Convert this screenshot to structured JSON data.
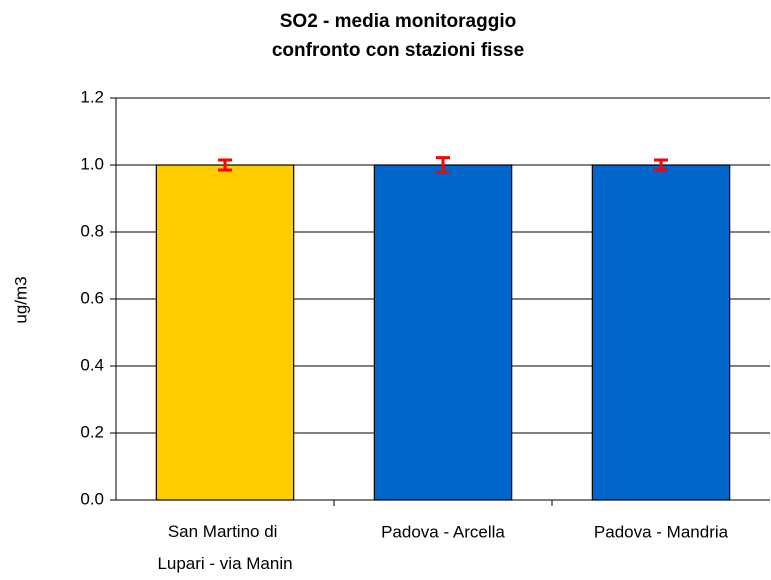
{
  "chart_data": {
    "type": "bar",
    "title": [
      "SO2 - media monitoraggio",
      "confronto con stazioni fisse"
    ],
    "y_label": "ug/m3",
    "categories": [
      "San Martino di Lupari - via Manin",
      "Padova - Arcella",
      "Padova - Mandria"
    ],
    "values": [
      1.0,
      1.0,
      1.0
    ],
    "errors": [
      0.015,
      0.022,
      0.015
    ],
    "colors": [
      "#ffcc00",
      "#0066cc",
      "#0066cc"
    ],
    "error_color": "#ff0000",
    "ylim": [
      0,
      1.2
    ],
    "yticks": [
      {
        "value": 0,
        "label": "0.0"
      },
      0.2,
      0.4,
      0.6,
      0.8,
      {
        "value": 1,
        "label": "1.0"
      },
      1.2
    ],
    "grid": true
  }
}
